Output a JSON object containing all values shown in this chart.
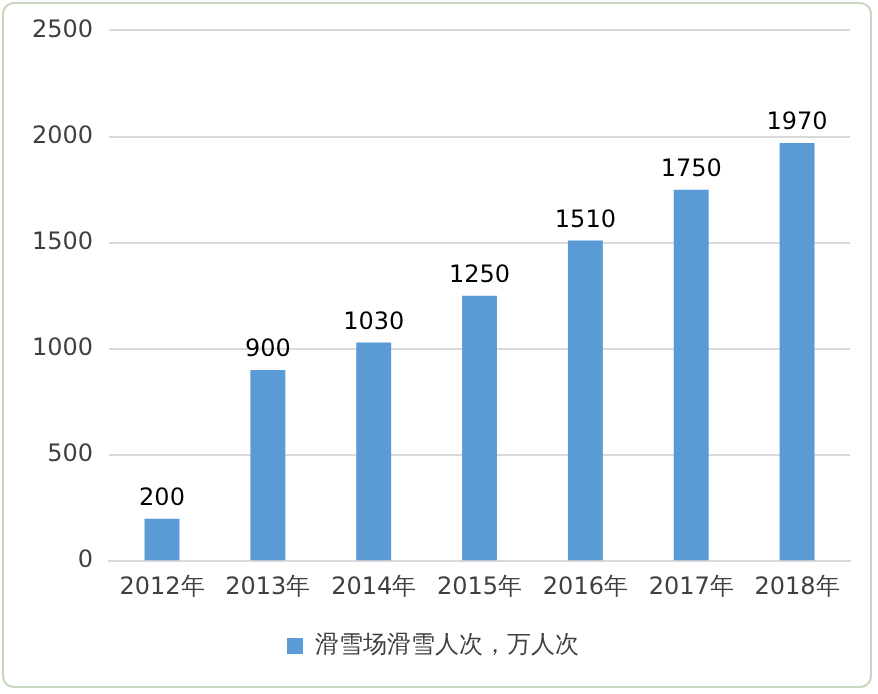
{
  "chart_data": {
    "type": "bar",
    "categories": [
      "2012年",
      "2013年",
      "2014年",
      "2015年",
      "2016年",
      "2017年",
      "2018年"
    ],
    "series": [
      {
        "name": "滑雪场滑雪人次，万人次",
        "color": "#5b9bd5",
        "values": [
          200,
          900,
          1030,
          1250,
          1510,
          1750,
          1970
        ]
      }
    ],
    "ylim": [
      0,
      2500
    ],
    "yticks": [
      0,
      500,
      1000,
      1500,
      2000,
      2500
    ],
    "grid": "y",
    "legend": "bottom",
    "data_labels": true
  }
}
